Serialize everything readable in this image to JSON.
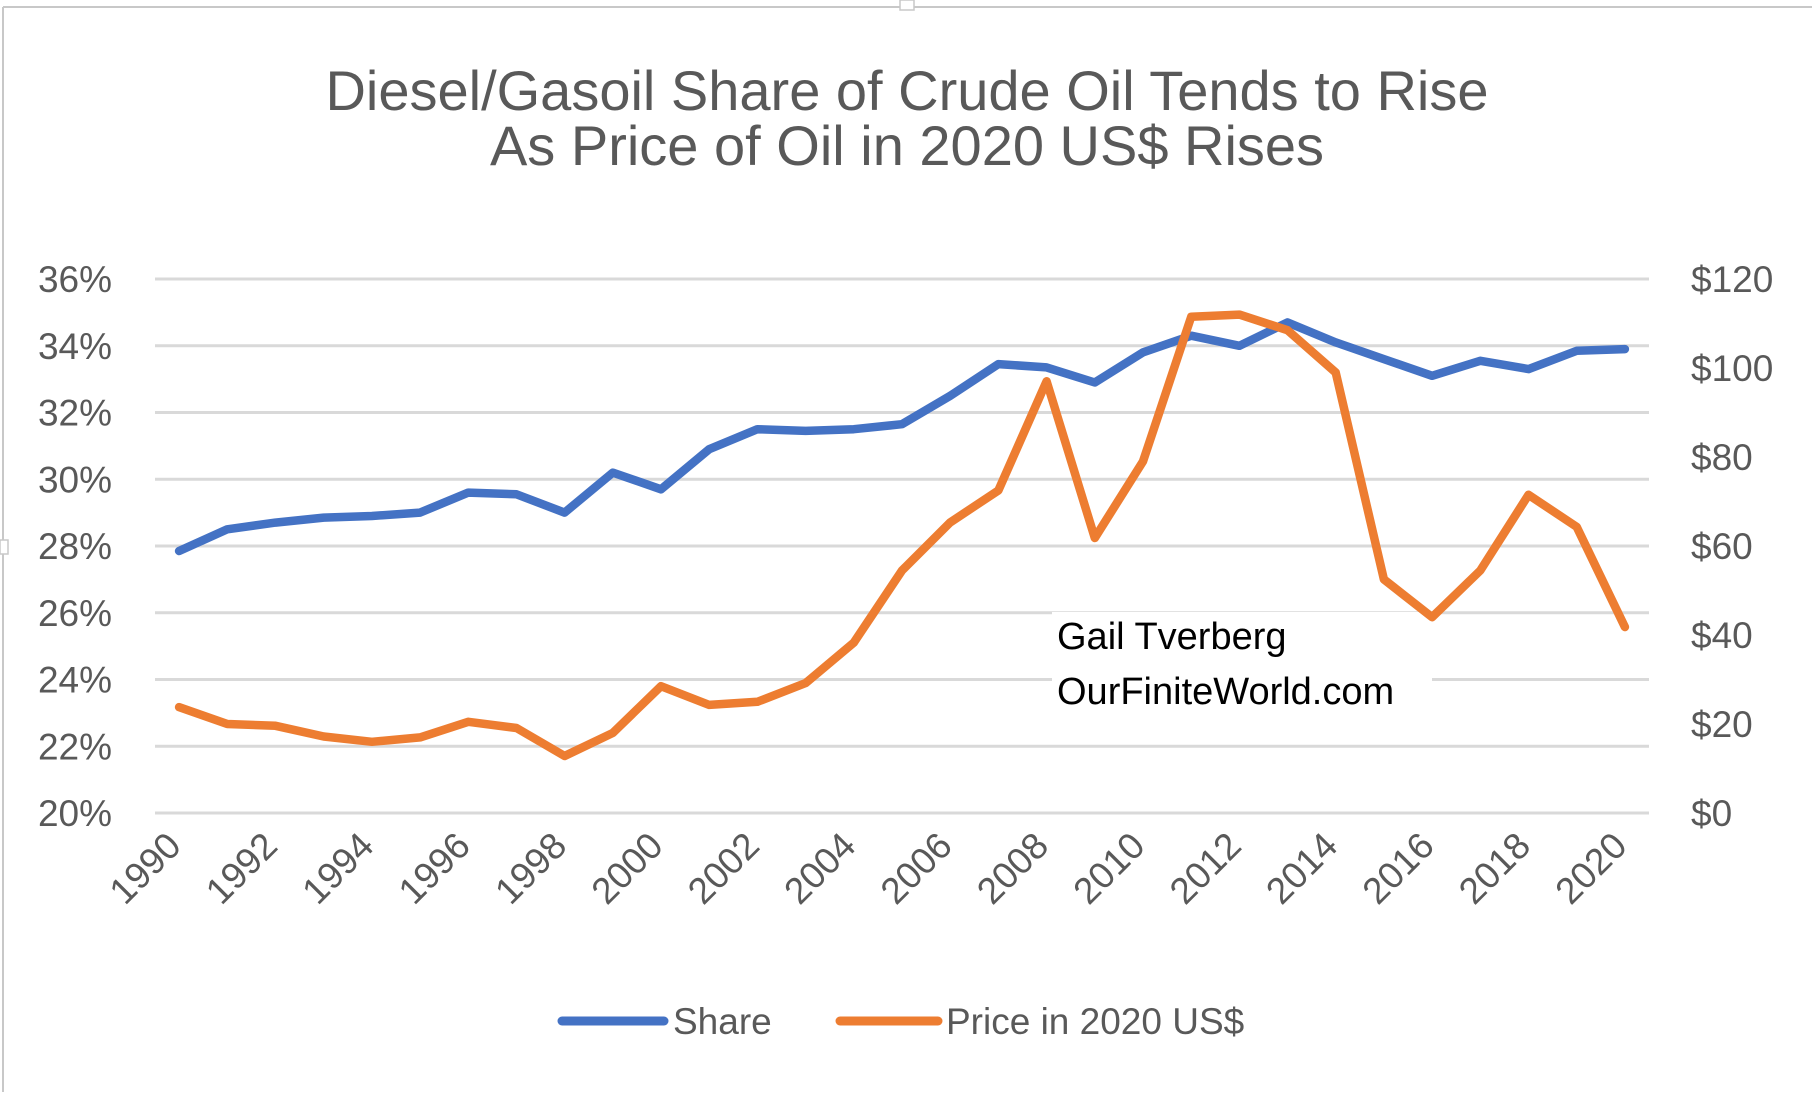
{
  "chart_data": {
    "type": "line",
    "title": [
      "Diesel/Gasoil Share of Crude Oil Tends to Rise",
      "As Price of Oil in 2020 US$ Rises"
    ],
    "xlabel": "",
    "ylabel": "",
    "y2label": "",
    "x": [
      1990,
      1991,
      1992,
      1993,
      1994,
      1995,
      1996,
      1997,
      1998,
      1999,
      2000,
      2001,
      2002,
      2003,
      2004,
      2005,
      2006,
      2007,
      2008,
      2009,
      2010,
      2011,
      2012,
      2013,
      2014,
      2015,
      2016,
      2017,
      2018,
      2019,
      2020
    ],
    "x_tick_labels": [
      "1990",
      "1992",
      "1994",
      "1996",
      "1998",
      "2000",
      "2002",
      "2004",
      "2006",
      "2008",
      "2010",
      "2012",
      "2014",
      "2016",
      "2018",
      "2020"
    ],
    "ylim": [
      20,
      36
    ],
    "y_ticks": [
      20,
      22,
      24,
      26,
      28,
      30,
      32,
      34,
      36
    ],
    "y_tick_labels": [
      "20%",
      "22%",
      "24%",
      "26%",
      "28%",
      "30%",
      "32%",
      "34%",
      "36%"
    ],
    "y2lim": [
      0,
      120
    ],
    "y2_ticks": [
      0,
      20,
      40,
      60,
      80,
      100,
      120
    ],
    "y2_tick_labels": [
      "$0",
      "$20",
      "$40",
      "$60",
      "$80",
      "$100",
      "$120"
    ],
    "grid": true,
    "legend_position": "bottom",
    "series": [
      {
        "name": "Share",
        "axis": "left",
        "color": "#4472C4",
        "values": [
          27.85,
          28.5,
          28.7,
          28.85,
          28.9,
          29.0,
          29.6,
          29.55,
          29.0,
          30.2,
          29.7,
          30.9,
          31.5,
          31.45,
          31.5,
          31.65,
          32.5,
          33.45,
          33.35,
          32.9,
          33.8,
          34.3,
          34.0,
          34.7,
          34.1,
          33.6,
          33.1,
          33.55,
          33.3,
          33.85,
          33.9
        ]
      },
      {
        "name": "Price in 2020 US$",
        "axis": "right",
        "color": "#ED7D31",
        "values": [
          23.8,
          20.0,
          19.6,
          17.2,
          16.0,
          17.0,
          20.5,
          19.1,
          12.8,
          18.0,
          28.5,
          24.3,
          25.0,
          29.2,
          38.3,
          54.5,
          65.3,
          72.5,
          97.0,
          61.8,
          79.0,
          111.5,
          112.0,
          108.5,
          99.0,
          52.5,
          44.0,
          54.5,
          71.5,
          64.3,
          41.8
        ]
      }
    ],
    "annotation": [
      "Gail Tverberg",
      "OurFiniteWorld.com"
    ]
  }
}
